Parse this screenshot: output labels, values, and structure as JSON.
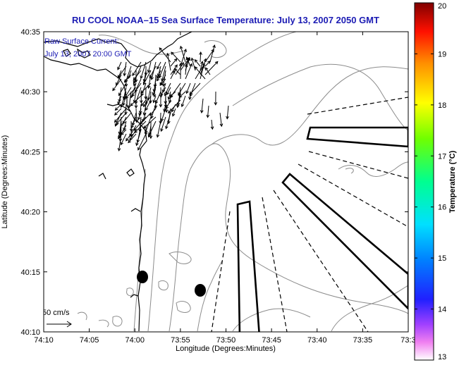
{
  "title": "RU COOL  NOAA–15  Sea Surface Temperature:  July 13, 2007 2050 GMT",
  "annotation": {
    "line1": "Raw Surface Current:",
    "line2": "July 13, 2007 20:00 GMT"
  },
  "scale_label": "50 cm/s",
  "axes": {
    "xlabel": "Longitude (Degrees:Minutes)",
    "ylabel": "Latitude (Degrees:Minutes)",
    "x_ticks": [
      "74:10",
      "74:05",
      "74:00",
      "73:55",
      "73:50",
      "73:45",
      "73:40",
      "73:35",
      "73:3"
    ],
    "y_ticks": [
      "40:35",
      "40:30",
      "40:25",
      "40:20",
      "40:15",
      "40:10"
    ]
  },
  "colorbar": {
    "label": "Temperature (°C)",
    "ticks": [
      "20",
      "19",
      "18",
      "17",
      "16",
      "15",
      "14",
      "13"
    ],
    "min": 13,
    "max": 20
  },
  "colors": {
    "title": "#1c1cb4",
    "coast": "#000000",
    "bathymetry": "#8c8c8c",
    "vectors": "#000000"
  },
  "map_features": {
    "sampling_areas": 3,
    "dredge_dots": 2
  }
}
